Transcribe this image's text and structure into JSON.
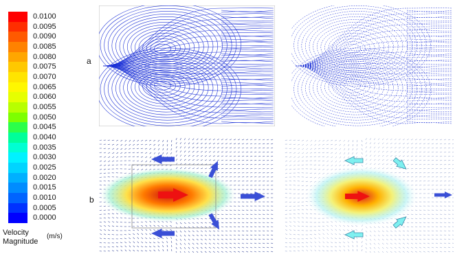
{
  "legend": {
    "title": "Velocity Magnitude",
    "unit": "(m/s)",
    "ticks": [
      "0.0100",
      "0.0095",
      "0.0090",
      "0.0085",
      "0.0080",
      "0.0075",
      "0.0070",
      "0.0065",
      "0.0060",
      "0.0055",
      "0.0050",
      "0.0045",
      "0.0040",
      "0.0035",
      "0.0030",
      "0.0025",
      "0.0020",
      "0.0015",
      "0.0010",
      "0.0005",
      "0.0000"
    ],
    "colors": [
      "#ff0000",
      "#ff2e00",
      "#ff5a00",
      "#ff8200",
      "#ffa600",
      "#ffc800",
      "#ffe400",
      "#fff700",
      "#e6ff00",
      "#b8ff00",
      "#7dff00",
      "#2bff4a",
      "#00ff9a",
      "#00ffd2",
      "#00f2ff",
      "#00d4ff",
      "#00b0ff",
      "#008cff",
      "#0064ff",
      "#0032ff",
      "#0000ff"
    ]
  },
  "rows": {
    "a_label": "a",
    "b_label": "b"
  },
  "colors": {
    "streamline_blue": "#1a2fd6",
    "arrow_blue": "#3a4fd6",
    "arrow_red": "#ee1111",
    "arrow_cyan": "#7ff0f0"
  }
}
